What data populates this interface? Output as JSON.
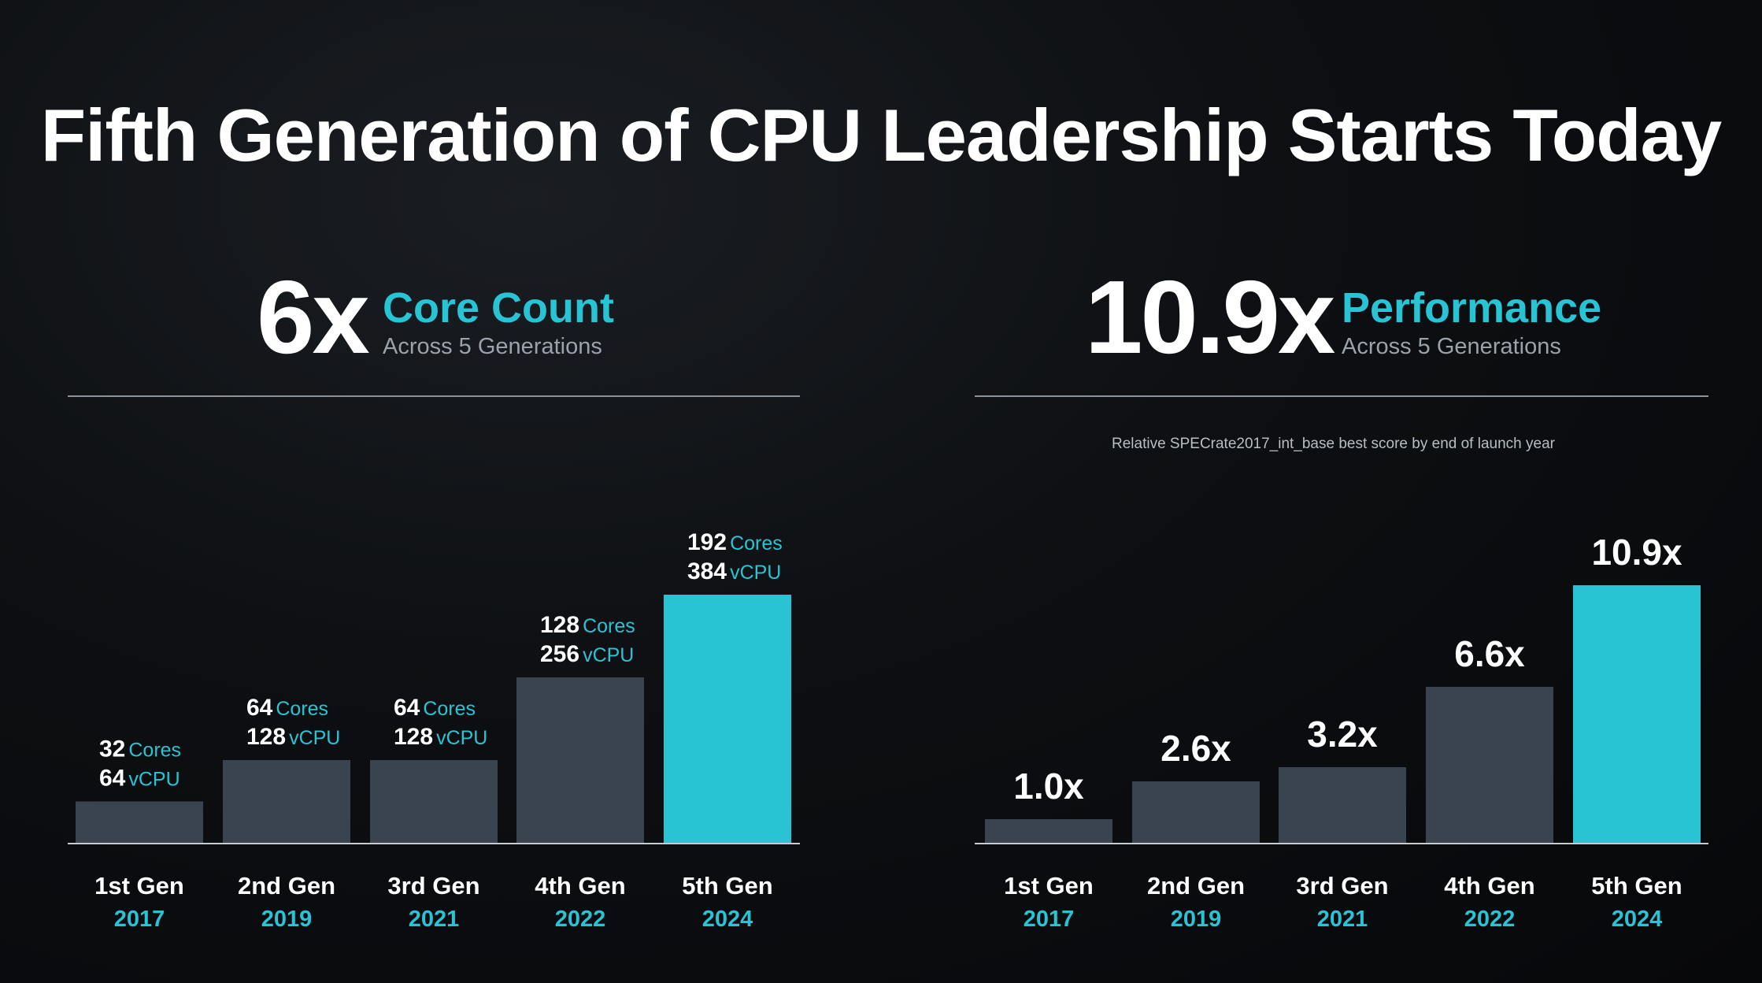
{
  "title": "Fifth Generation of CPU Leadership Starts Today",
  "colors": {
    "accent": "#29c4d4",
    "bar": "#3a4451",
    "baseline": "#c7cbd0",
    "text": "#ffffff",
    "subtext": "#9aa2ab"
  },
  "left_panel": {
    "multiplier": "6x",
    "metric": "Core Count",
    "subtitle": "Across 5 Generations"
  },
  "right_panel": {
    "multiplier": "10.9x",
    "metric": "Performance",
    "subtitle": "Across 5 Generations",
    "note": "Relative SPECrate2017_int_base best score by end of launch year"
  },
  "chart_data": [
    {
      "type": "bar",
      "categories": [
        "1st Gen",
        "2nd Gen",
        "3rd Gen",
        "4th Gen",
        "5th Gen"
      ],
      "years": [
        "2017",
        "2019",
        "2021",
        "2022",
        "2024"
      ],
      "series": [
        {
          "values": [
            32,
            64,
            64,
            128,
            192
          ]
        }
      ],
      "highlight_index": 4,
      "ylim": [
        0,
        192
      ],
      "bar_labels": [
        [
          {
            "num": "32",
            "unit": "Cores"
          },
          {
            "num": "64",
            "unit": "vCPU"
          }
        ],
        [
          {
            "num": "64",
            "unit": "Cores"
          },
          {
            "num": "128",
            "unit": "vCPU"
          }
        ],
        [
          {
            "num": "64",
            "unit": "Cores"
          },
          {
            "num": "128",
            "unit": "vCPU"
          }
        ],
        [
          {
            "num": "128",
            "unit": "Cores"
          },
          {
            "num": "256",
            "unit": "vCPU"
          }
        ],
        [
          {
            "num": "192",
            "unit": "Cores"
          },
          {
            "num": "384",
            "unit": "vCPU"
          }
        ]
      ],
      "grid": false
    },
    {
      "type": "bar",
      "categories": [
        "1st Gen",
        "2nd Gen",
        "3rd Gen",
        "4th Gen",
        "5th Gen"
      ],
      "years": [
        "2017",
        "2019",
        "2021",
        "2022",
        "2024"
      ],
      "series": [
        {
          "values": [
            1.0,
            2.6,
            3.2,
            6.6,
            10.9
          ]
        }
      ],
      "highlight_index": 4,
      "ylim": [
        0,
        10.9
      ],
      "data_labels": [
        "1.0x",
        "2.6x",
        "3.2x",
        "6.6x",
        "10.9x"
      ],
      "grid": false
    }
  ]
}
